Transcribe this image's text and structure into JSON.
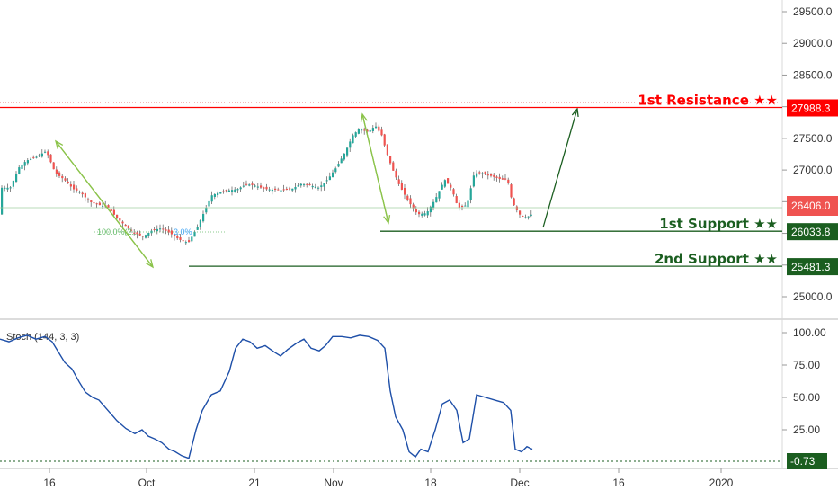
{
  "chart_data": [
    {
      "type": "candlestick",
      "pane": "price",
      "ylim": [
        24750,
        29800
      ],
      "y_ticks": [
        "25000.0",
        "25500.0",
        "26000.0",
        "26500.0",
        "27000.0",
        "27500.0",
        "28000.0",
        "28500.0",
        "29000.0",
        "29500.0"
      ],
      "x_ticks": [
        "16",
        "Oct",
        "21",
        "Nov",
        "18",
        "Dec",
        "16",
        "2020"
      ],
      "current_price": "26406.0",
      "close_path": [
        [
          0,
          26720
        ],
        [
          12,
          26720
        ],
        [
          22,
          27050
        ],
        [
          30,
          27150
        ],
        [
          40,
          27200
        ],
        [
          52,
          27300
        ],
        [
          62,
          26950
        ],
        [
          72,
          26850
        ],
        [
          82,
          26700
        ],
        [
          90,
          26650
        ],
        [
          100,
          26500
        ],
        [
          110,
          26450
        ],
        [
          120,
          26420
        ],
        [
          130,
          26250
        ],
        [
          140,
          26120
        ],
        [
          150,
          26000
        ],
        [
          160,
          25950
        ],
        [
          170,
          26050
        ],
        [
          180,
          26080
        ],
        [
          190,
          26000
        ],
        [
          200,
          25900
        ],
        [
          210,
          25850
        ],
        [
          220,
          26100
        ],
        [
          228,
          26350
        ],
        [
          236,
          26600
        ],
        [
          245,
          26650
        ],
        [
          255,
          26680
        ],
        [
          265,
          26700
        ],
        [
          275,
          26780
        ],
        [
          285,
          26750
        ],
        [
          295,
          26700
        ],
        [
          305,
          26690
        ],
        [
          315,
          26680
        ],
        [
          325,
          26700
        ],
        [
          335,
          26780
        ],
        [
          345,
          26760
        ],
        [
          355,
          26720
        ],
        [
          365,
          26850
        ],
        [
          375,
          27050
        ],
        [
          385,
          27300
        ],
        [
          393,
          27550
        ],
        [
          400,
          27650
        ],
        [
          410,
          27600
        ],
        [
          418,
          27700
        ],
        [
          425,
          27550
        ],
        [
          430,
          27300
        ],
        [
          436,
          27050
        ],
        [
          445,
          26750
        ],
        [
          455,
          26500
        ],
        [
          465,
          26300
        ],
        [
          475,
          26320
        ],
        [
          485,
          26550
        ],
        [
          495,
          26850
        ],
        [
          503,
          26700
        ],
        [
          510,
          26400
        ],
        [
          520,
          26450
        ],
        [
          528,
          26950
        ],
        [
          538,
          26950
        ],
        [
          548,
          26900
        ],
        [
          558,
          26850
        ],
        [
          565,
          26850
        ],
        [
          570,
          26500
        ],
        [
          578,
          26300
        ],
        [
          586,
          26250
        ],
        [
          592,
          26300
        ]
      ],
      "levels": [
        {
          "label": "1st Resistance ★★",
          "value": 27988.3,
          "value_text": "27988.3",
          "color": "#ff0000"
        },
        {
          "label": "1st Support ★★",
          "value": 26033.8,
          "value_text": "26033.8",
          "color": "#1b5e20"
        },
        {
          "label": "2nd Support ★★",
          "value": 25481.3,
          "value_text": "25481.3",
          "color": "#1b5e20"
        }
      ],
      "fib_labels": [
        "100.0%(2...",
        "3.0%"
      ],
      "colors": {
        "up": "#26a69a",
        "down": "#ef5350",
        "current_tag": "#ef5350",
        "arrow": "#8bc34a"
      }
    },
    {
      "type": "line",
      "pane": "stochastic",
      "title": "Stoch (144, 3, 3)",
      "ylim": [
        -5,
        105
      ],
      "y_ticks": [
        "100.00",
        "75.00",
        "50.00",
        "25.00"
      ],
      "last_value": "-0.73",
      "series": [
        {
          "color": "#1e4fa8",
          "values": [
            [
              0,
              95
            ],
            [
              10,
              93
            ],
            [
              20,
              96
            ],
            [
              30,
              98
            ],
            [
              40,
              95
            ],
            [
              50,
              97
            ],
            [
              58,
              93
            ],
            [
              65,
              85
            ],
            [
              72,
              77
            ],
            [
              80,
              72
            ],
            [
              88,
              62
            ],
            [
              95,
              54
            ],
            [
              103,
              50
            ],
            [
              110,
              48
            ],
            [
              120,
              40
            ],
            [
              130,
              32
            ],
            [
              140,
              26
            ],
            [
              150,
              22
            ],
            [
              158,
              25
            ],
            [
              165,
              20
            ],
            [
              172,
              18
            ],
            [
              180,
              15
            ],
            [
              188,
              10
            ],
            [
              195,
              8
            ],
            [
              202,
              5
            ],
            [
              210,
              3
            ],
            [
              218,
              25
            ],
            [
              225,
              40
            ],
            [
              235,
              52
            ],
            [
              245,
              55
            ],
            [
              255,
              70
            ],
            [
              262,
              88
            ],
            [
              270,
              95
            ],
            [
              278,
              93
            ],
            [
              286,
              88
            ],
            [
              295,
              90
            ],
            [
              305,
              85
            ],
            [
              312,
              82
            ],
            [
              320,
              87
            ],
            [
              330,
              92
            ],
            [
              338,
              95
            ],
            [
              346,
              88
            ],
            [
              355,
              86
            ],
            [
              362,
              90
            ],
            [
              370,
              97
            ],
            [
              380,
              97
            ],
            [
              390,
              96
            ],
            [
              400,
              98
            ],
            [
              410,
              97
            ],
            [
              420,
              94
            ],
            [
              428,
              88
            ],
            [
              434,
              55
            ],
            [
              440,
              35
            ],
            [
              448,
              25
            ],
            [
              455,
              8
            ],
            [
              462,
              4
            ],
            [
              468,
              10
            ],
            [
              476,
              8
            ],
            [
              484,
              25
            ],
            [
              492,
              45
            ],
            [
              500,
              48
            ],
            [
              508,
              40
            ],
            [
              515,
              15
            ],
            [
              522,
              18
            ],
            [
              530,
              52
            ],
            [
              540,
              50
            ],
            [
              550,
              48
            ],
            [
              560,
              46
            ],
            [
              568,
              40
            ],
            [
              573,
              10
            ],
            [
              580,
              8
            ],
            [
              586,
              12
            ],
            [
              592,
              10
            ]
          ]
        }
      ],
      "colors": {
        "last_tag": "#1b5e20",
        "zero_line": "#1b5e20"
      }
    }
  ]
}
